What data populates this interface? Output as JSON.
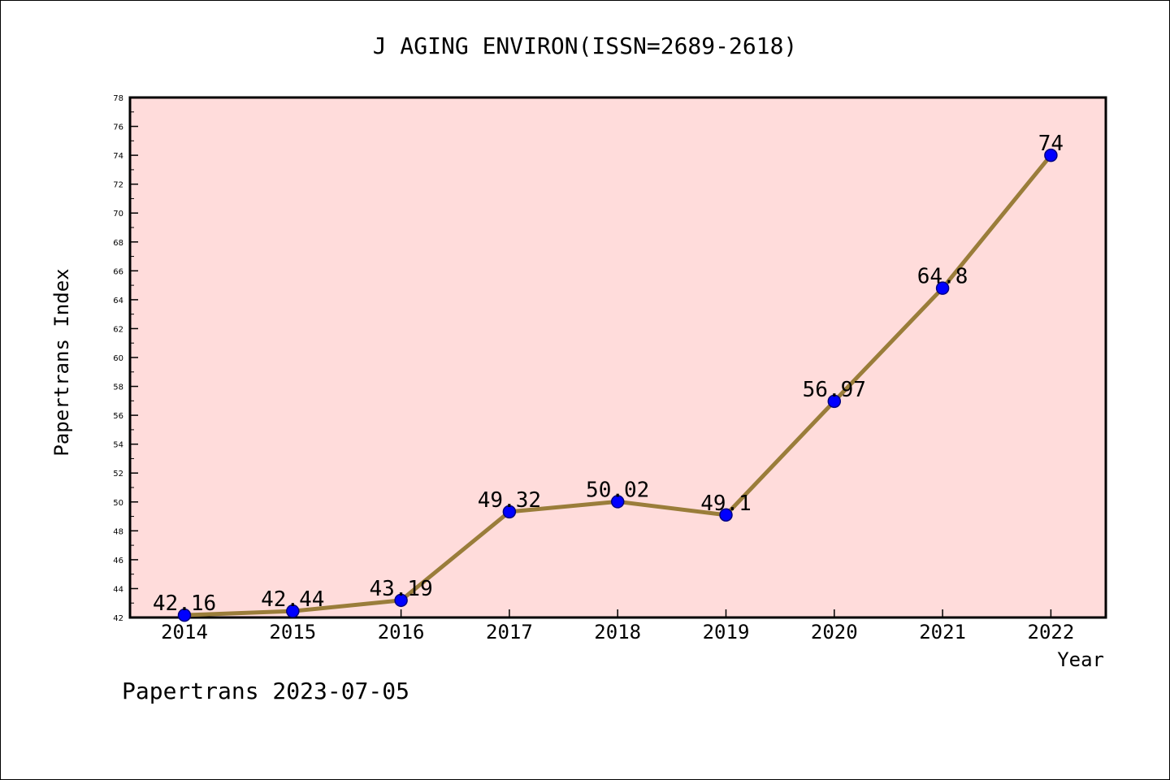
{
  "chart_data": {
    "type": "line",
    "title": "J AGING ENVIRON(ISSN=2689-2618)",
    "xlabel": "Year",
    "ylabel": "Papertrans Index",
    "categories": [
      "2014",
      "2015",
      "2016",
      "2017",
      "2018",
      "2019",
      "2020",
      "2021",
      "2022"
    ],
    "series": [
      {
        "values": [
          42.16,
          42.44,
          43.19,
          49.32,
          50.02,
          49.1,
          56.97,
          64.8,
          74
        ],
        "labels": [
          "42.16",
          "42.44",
          "43.19",
          "49.32",
          "50.02",
          "49.1",
          "56.97",
          "64.8",
          "74"
        ]
      }
    ],
    "ylim": [
      42,
      78
    ],
    "yticks": [
      42,
      44,
      46,
      48,
      50,
      52,
      54,
      56,
      58,
      60,
      62,
      64,
      66,
      68,
      70,
      72,
      74,
      76,
      78
    ],
    "grid": false,
    "colors": {
      "plot_background": "#FFDCDB",
      "line": "#9A7D3A",
      "marker_fill": "#0000FF",
      "marker_edge": "#000080"
    }
  },
  "footer": {
    "text": "Papertrans 2023-07-05"
  }
}
